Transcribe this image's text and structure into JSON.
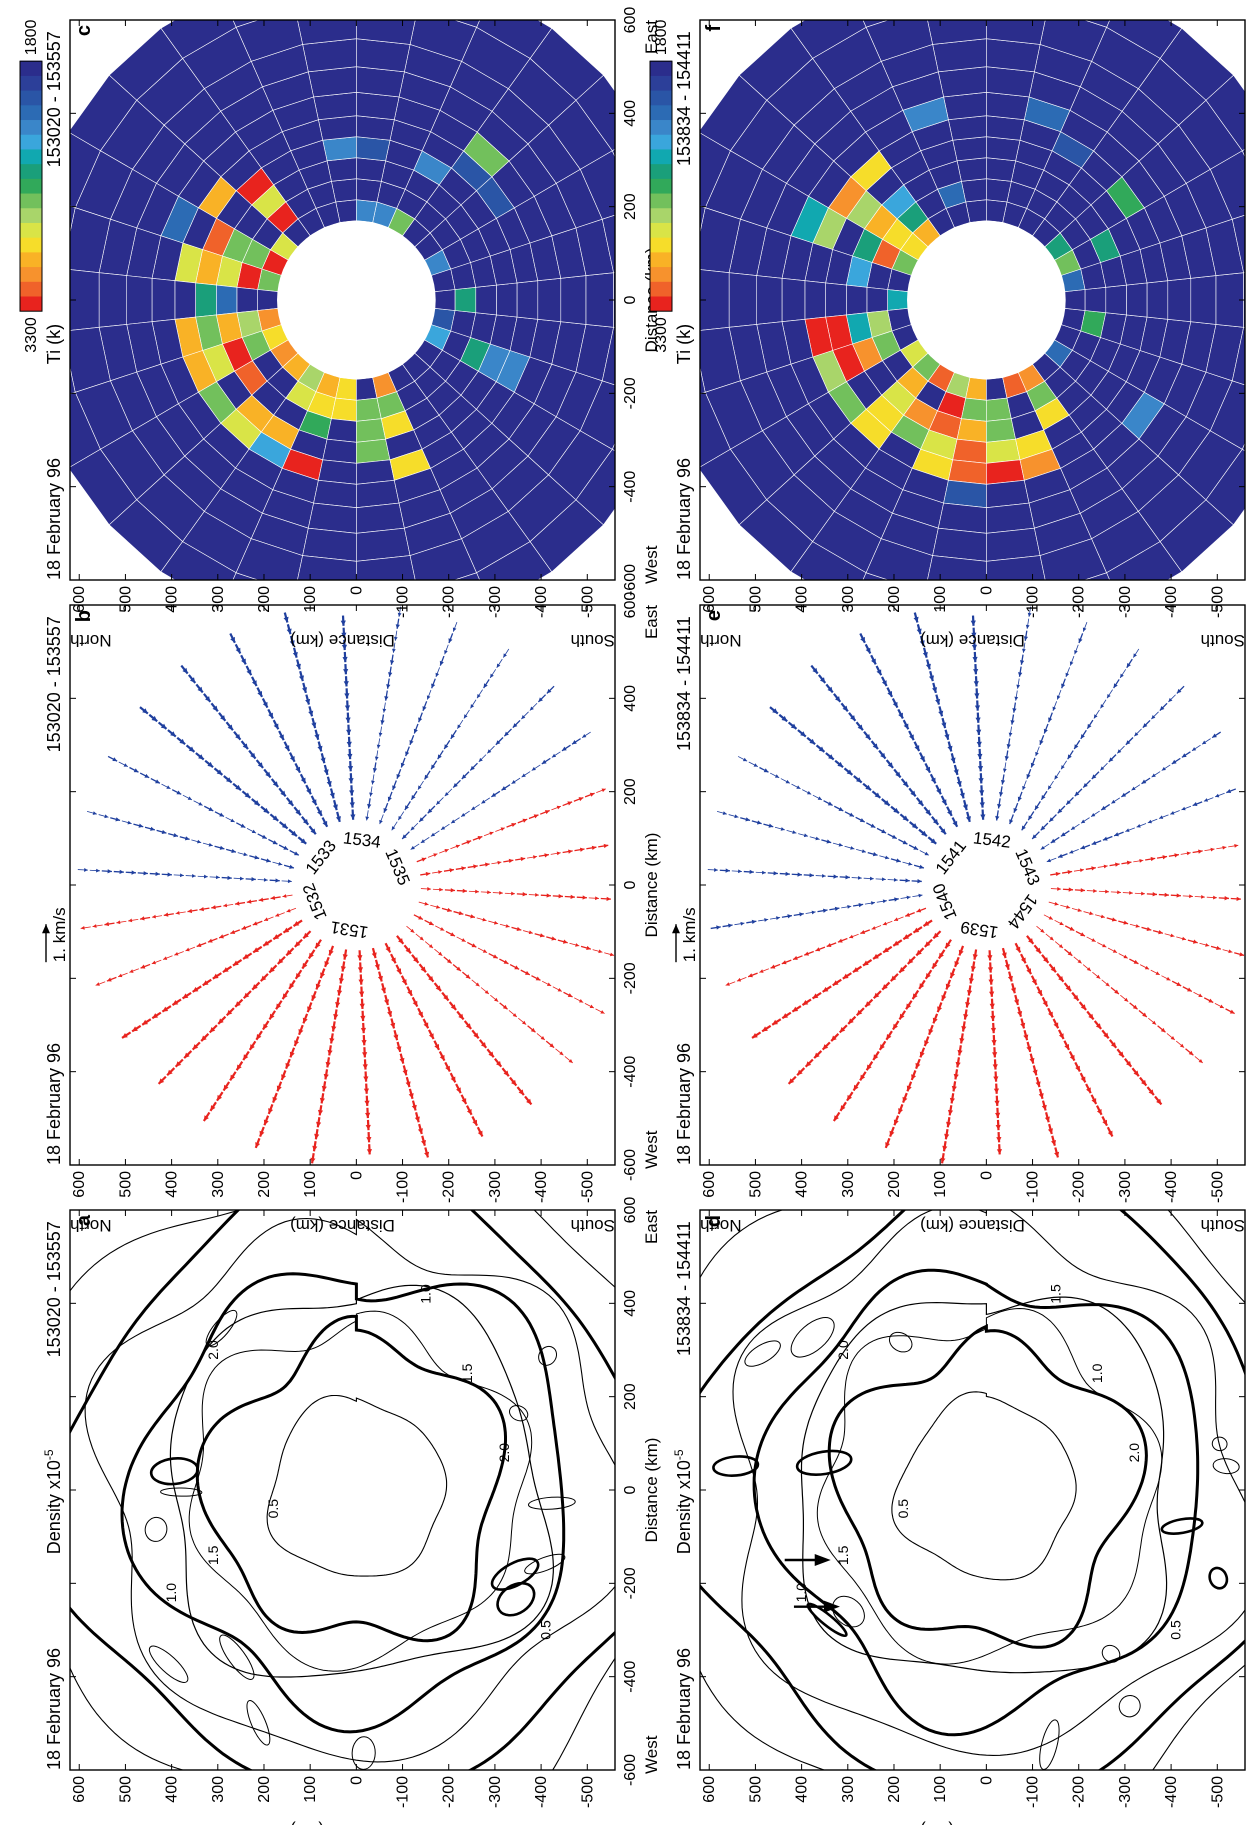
{
  "common": {
    "date": "18 February 96",
    "xlabel": "Distance (km)",
    "ylabel": "Distance (km)",
    "north": "North",
    "south": "South",
    "west": "West",
    "east": "East",
    "x_ticks": [
      "-600",
      "-400",
      "-200",
      "0",
      "200",
      "400",
      "600"
    ],
    "y_ticks": [
      "600",
      "500",
      "400",
      "300",
      "200",
      "100",
      "0",
      "-100",
      "-200",
      "-300",
      "-400",
      "-500"
    ]
  },
  "panels": [
    {
      "id": "a",
      "row": 0,
      "col": 0,
      "kind": "density",
      "letter": "a",
      "param": "Density x10",
      "param_sup": "-5",
      "time": "153020 - 153557"
    },
    {
      "id": "b",
      "row": 0,
      "col": 1,
      "kind": "vector",
      "letter": "b",
      "param": "1. km/s",
      "time": "153020 - 153557",
      "center_labels": [
        "1531",
        "1532",
        "1533",
        "1534",
        "1535"
      ]
    },
    {
      "id": "c",
      "row": 0,
      "col": 2,
      "kind": "temp",
      "letter": "c",
      "param": "Ti (k)",
      "time": "153020 - 153557",
      "colorbar": {
        "min": "1800",
        "max": "3300"
      }
    },
    {
      "id": "d",
      "row": 1,
      "col": 0,
      "kind": "density",
      "letter": "d",
      "param": "Density x10",
      "param_sup": "-5",
      "time": "153834 - 154411"
    },
    {
      "id": "e",
      "row": 1,
      "col": 1,
      "kind": "vector",
      "letter": "e",
      "param": "1. km/s",
      "time": "153834 - 154411",
      "center_labels": [
        "1539",
        "1540",
        "1541",
        "1542",
        "1543",
        "1544"
      ]
    },
    {
      "id": "f",
      "row": 1,
      "col": 2,
      "kind": "temp",
      "letter": "f",
      "param": "Ti (k)",
      "time": "153834 - 154411",
      "colorbar": {
        "min": "1800",
        "max": "3300"
      }
    }
  ],
  "contour_labels": {
    "a": [
      "0.5",
      "1.0",
      "1.5",
      "2.0",
      "1.5",
      "2.0",
      "1.0",
      "0.5"
    ],
    "d": [
      "0.5",
      "1.0",
      "1.5",
      "2.0",
      "1.0",
      "2.0",
      "1.5",
      "0.5"
    ]
  },
  "colors": {
    "red_vector": "#e8231e",
    "blue_vector": "#1f3f9e",
    "bg_temp": "#2b2d8c",
    "colorbar": [
      "#e8231e",
      "#f0622a",
      "#f7922d",
      "#f9b226",
      "#f6dd2a",
      "#d9e447",
      "#a9d56a",
      "#72c05c",
      "#31a95a",
      "#1a9f7a",
      "#11a8b0",
      "#3aa6dc",
      "#3a86c9",
      "#2c6bb4",
      "#2a55a6",
      "#2c3f99",
      "#2b2d8c"
    ]
  }
}
